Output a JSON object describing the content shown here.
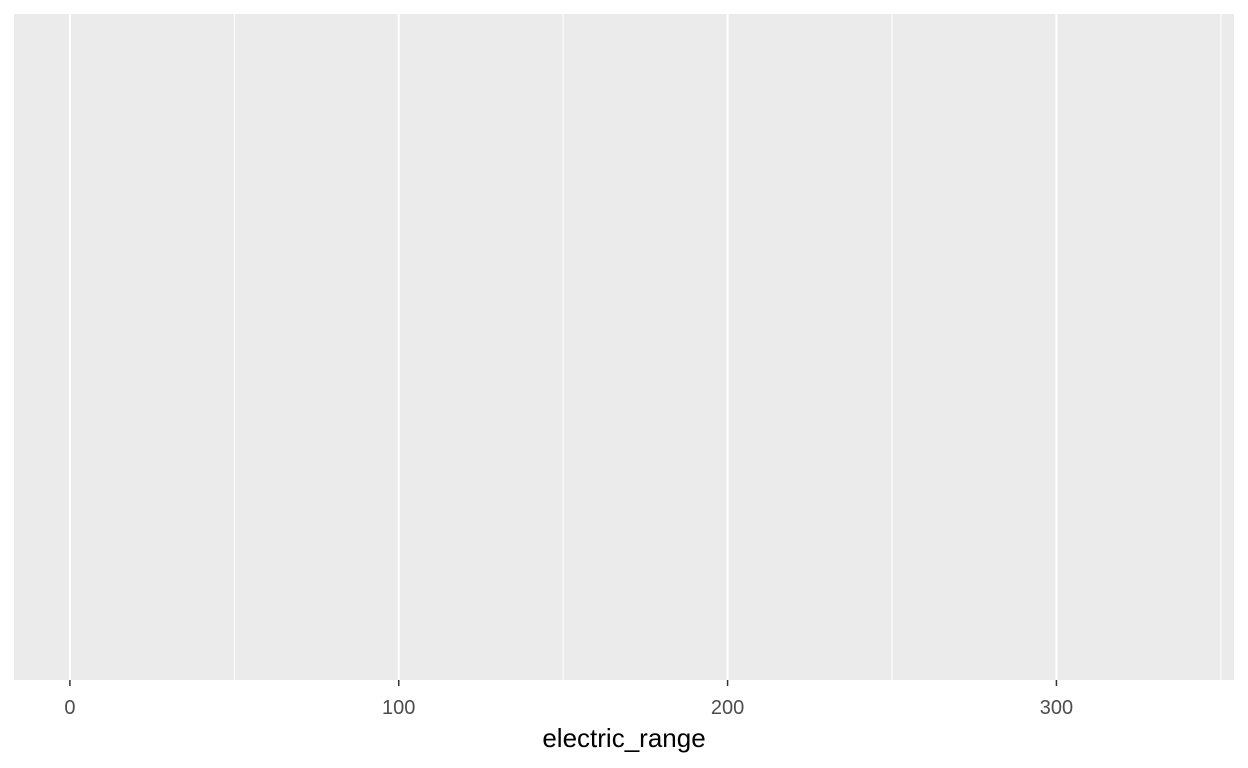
{
  "chart_data": {
    "type": "histogram",
    "title": "",
    "xlabel": "electric_range",
    "ylabel": "",
    "xlim": [
      -17,
      354
    ],
    "x_ticks": [
      0,
      100,
      200,
      300
    ],
    "x_tick_labels": [
      "0",
      "100",
      "200",
      "300"
    ],
    "x_minor_gridlines": [
      50,
      150,
      250,
      350
    ],
    "y_ticks": [],
    "series": [],
    "grid": true,
    "legend": "none",
    "colors": {
      "panel_background": "#ebebeb",
      "gridline": "#ffffff",
      "tick_mark": "#333333",
      "tick_label": "#4d4d4d",
      "axis_title": "#000000"
    }
  }
}
